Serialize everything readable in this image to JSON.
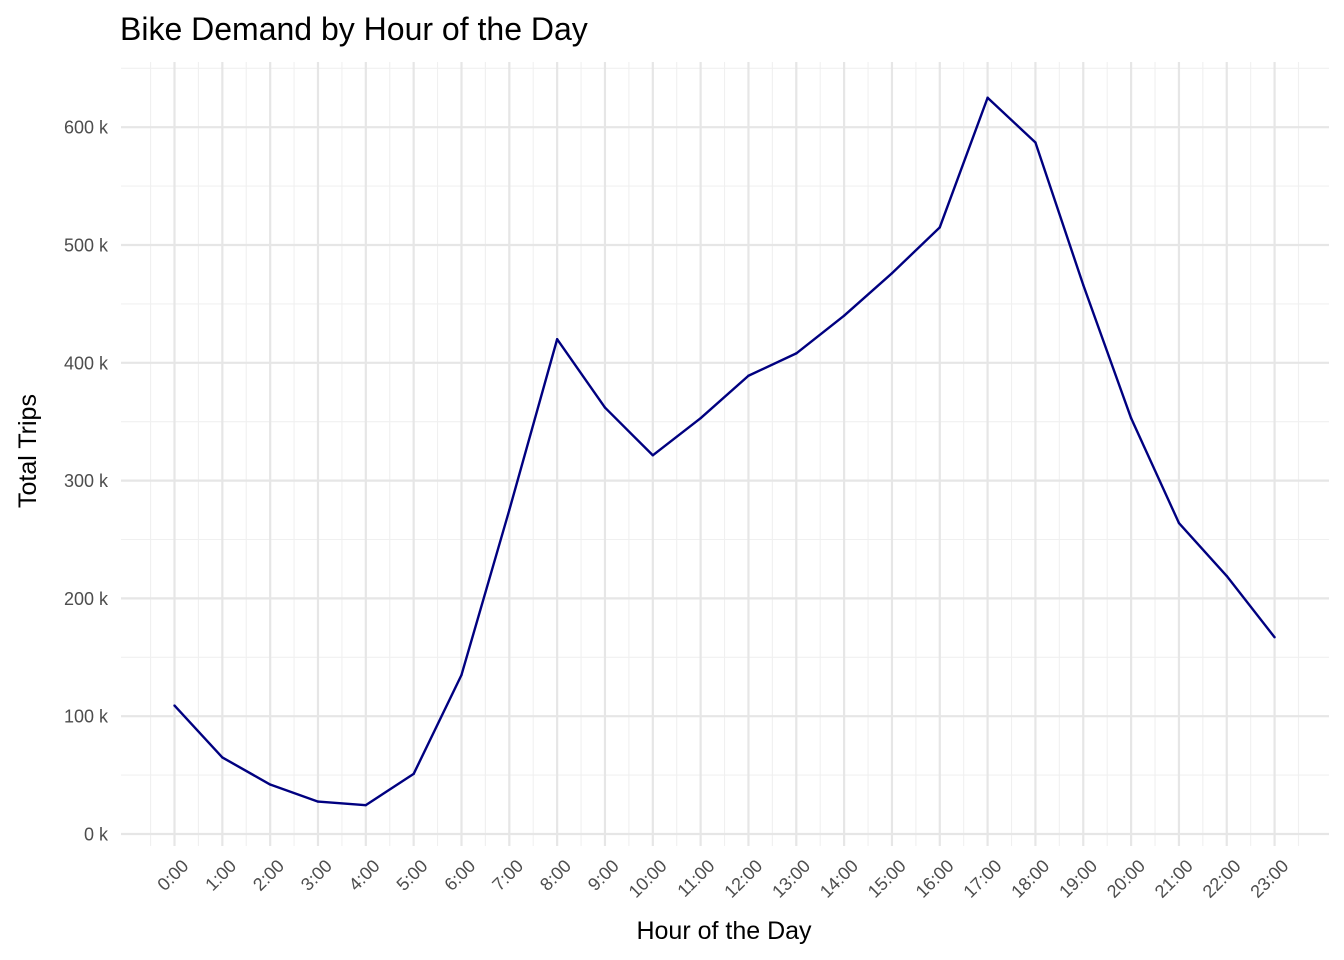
{
  "chart_data": {
    "type": "line",
    "title": "Bike Demand by Hour of the Day",
    "xlabel": "Hour of the Day",
    "ylabel": "Total Trips",
    "categories": [
      "0:00",
      "1:00",
      "2:00",
      "3:00",
      "4:00",
      "5:00",
      "6:00",
      "7:00",
      "8:00",
      "9:00",
      "10:00",
      "11:00",
      "12:00",
      "13:00",
      "14:00",
      "15:00",
      "16:00",
      "17:00",
      "18:00",
      "19:00",
      "20:00",
      "21:00",
      "22:00",
      "23:00"
    ],
    "series": [
      {
        "values": [
          109000,
          65000,
          42000,
          27500,
          24500,
          51000,
          135000,
          275000,
          420000,
          362000,
          321500,
          353000,
          389000,
          408000,
          440000,
          476000,
          515000,
          625000,
          587000,
          466000,
          353000,
          264000,
          219000,
          167000
        ],
        "color": "#000080"
      }
    ],
    "ylim": [
      0,
      650000
    ],
    "y_ticks": [
      0,
      100000,
      200000,
      300000,
      400000,
      500000,
      600000
    ],
    "y_tick_labels": [
      "0 k",
      "100 k",
      "200 k",
      "300 k",
      "400 k",
      "500 k",
      "600 k"
    ],
    "x_tick_rotation": -45,
    "grid": true,
    "legend": "none"
  }
}
